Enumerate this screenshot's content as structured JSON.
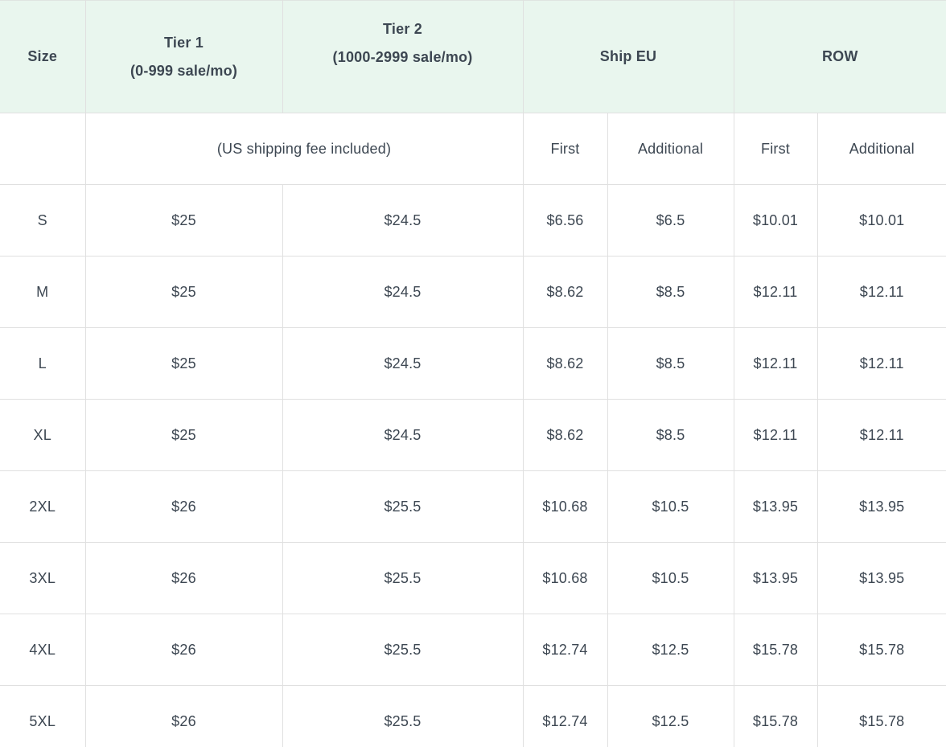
{
  "chart_data": {
    "type": "table",
    "header": {
      "size": "Size",
      "tier1": {
        "line1": "Tier 1",
        "line2": "(0-999 sale/mo)"
      },
      "tier2": {
        "line1": "Tier 2",
        "line2": "(1000-2999 sale/mo)"
      },
      "ship_eu": "Ship EU",
      "row_region": "ROW"
    },
    "subheader": {
      "us_note": "(US shipping fee included)",
      "eu_first": "First",
      "eu_additional": "Additional",
      "row_first": "First",
      "row_additional": "Additional"
    },
    "rows": [
      {
        "size": "S",
        "tier1": "$25",
        "tier2": "$24.5",
        "eu_first": "$6.56",
        "eu_additional": "$6.5",
        "row_first": "$10.01",
        "row_additional": "$10.01"
      },
      {
        "size": "M",
        "tier1": "$25",
        "tier2": "$24.5",
        "eu_first": "$8.62",
        "eu_additional": "$8.5",
        "row_first": "$12.11",
        "row_additional": "$12.11"
      },
      {
        "size": "L",
        "tier1": "$25",
        "tier2": "$24.5",
        "eu_first": "$8.62",
        "eu_additional": "$8.5",
        "row_first": "$12.11",
        "row_additional": "$12.11"
      },
      {
        "size": "XL",
        "tier1": "$25",
        "tier2": "$24.5",
        "eu_first": "$8.62",
        "eu_additional": "$8.5",
        "row_first": "$12.11",
        "row_additional": "$12.11"
      },
      {
        "size": "2XL",
        "tier1": "$26",
        "tier2": "$25.5",
        "eu_first": "$10.68",
        "eu_additional": "$10.5",
        "row_first": "$13.95",
        "row_additional": "$13.95"
      },
      {
        "size": "3XL",
        "tier1": "$26",
        "tier2": "$25.5",
        "eu_first": "$10.68",
        "eu_additional": "$10.5",
        "row_first": "$13.95",
        "row_additional": "$13.95"
      },
      {
        "size": "4XL",
        "tier1": "$26",
        "tier2": "$25.5",
        "eu_first": "$12.74",
        "eu_additional": "$12.5",
        "row_first": "$15.78",
        "row_additional": "$15.78"
      },
      {
        "size": "5XL",
        "tier1": "$26",
        "tier2": "$25.5",
        "eu_first": "$12.74",
        "eu_additional": "$12.5",
        "row_first": "$15.78",
        "row_additional": "$15.78"
      }
    ],
    "colors": {
      "header_bg": "#e9f6ee",
      "border": "#e0e0e0",
      "text": "#3d4752"
    }
  }
}
